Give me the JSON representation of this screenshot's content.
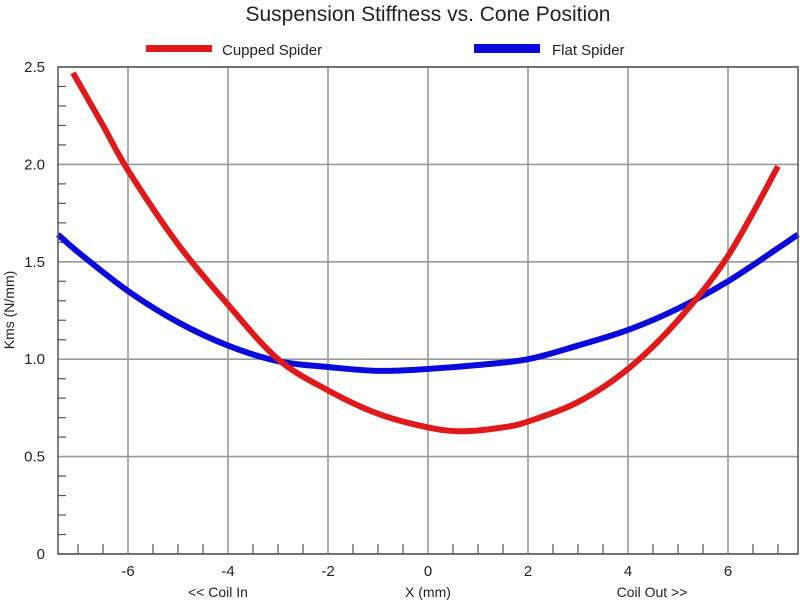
{
  "chart_data": {
    "type": "line",
    "title": "Suspension Stiffness vs. Cone Position",
    "xlabel": "X (mm)",
    "ylabel": "Kms (N/mm)",
    "xlim": [
      -7.4,
      7.4
    ],
    "ylim": [
      0,
      2.5
    ],
    "x_ticks": [
      -6,
      -4,
      -2,
      0,
      2,
      4,
      6
    ],
    "x_tick_labels": [
      "-6",
      "-4",
      "-2",
      "0",
      "2",
      "4",
      "6"
    ],
    "y_ticks": [
      0,
      0.5,
      1.0,
      1.5,
      2.0,
      2.5
    ],
    "y_tick_labels": [
      "0",
      "0.5",
      "1.0",
      "1.5",
      "2.0",
      "2.5"
    ],
    "grid": true,
    "legend_position": "top",
    "annotations": {
      "left": "<< Coil In",
      "right": "Coil Out >>"
    },
    "series": [
      {
        "name": "Cupped Spider",
        "color": "#e01a1a",
        "x": [
          -7.1,
          -6.5,
          -6,
          -5,
          -4,
          -3,
          -2,
          -1,
          0,
          0.7,
          1.5,
          2,
          3,
          4,
          5,
          6,
          7
        ],
        "y": [
          2.47,
          2.2,
          1.97,
          1.59,
          1.28,
          1.0,
          0.84,
          0.72,
          0.65,
          0.63,
          0.65,
          0.68,
          0.78,
          0.95,
          1.2,
          1.53,
          1.99
        ]
      },
      {
        "name": "Flat Spider",
        "color": "#0a0adc",
        "x": [
          -7.4,
          -7,
          -6,
          -5,
          -4,
          -3,
          -2,
          -1,
          0,
          1,
          2,
          3,
          4,
          5,
          6,
          7,
          7.4
        ],
        "y": [
          1.64,
          1.55,
          1.35,
          1.19,
          1.07,
          0.99,
          0.96,
          0.94,
          0.95,
          0.97,
          1.0,
          1.07,
          1.15,
          1.26,
          1.4,
          1.57,
          1.64
        ]
      }
    ]
  }
}
